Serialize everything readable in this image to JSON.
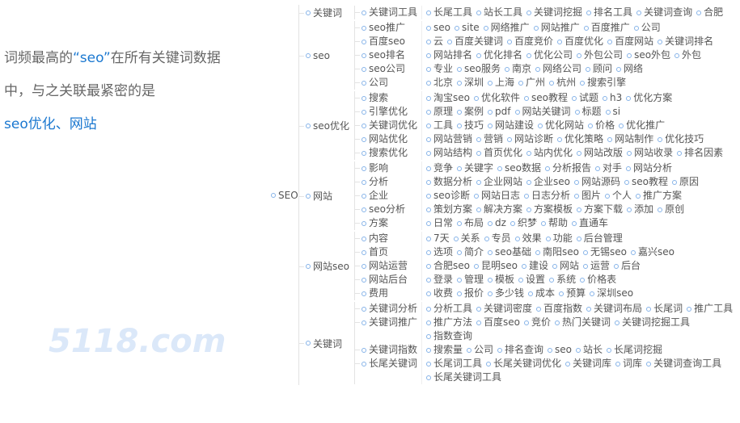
{
  "intro": {
    "line1_a": "词频最高的",
    "line1_keyword": "“seo”",
    "line1_b": "在所有关键词数据",
    "line2": "中，与之关联最紧密的是",
    "line3": "seo优化、网站"
  },
  "watermark": "5118.com",
  "colors": {
    "node_stroke": "#86b3e8",
    "link": "#e3e3e3",
    "label": "#555555",
    "highlight": "#1b78d0"
  },
  "tree": {
    "name": "SEO",
    "children": [
      {
        "name": "关键词",
        "children": [
          {
            "name": "关键词工具",
            "children": [
              "长尾工具",
              "站长工具",
              "关键词挖掘",
              "排名工具",
              "关键词查询",
              "合肥"
            ]
          }
        ]
      },
      {
        "name": "seo",
        "children": [
          {
            "name": "seo推广",
            "children": [
              "seo",
              "site",
              "网络推广",
              "网站推广",
              "百度推广",
              "公司"
            ]
          },
          {
            "name": "百度seo",
            "children": [
              "云",
              "百度关键词",
              "百度竞价",
              "百度优化",
              "百度网站",
              "关键词排名"
            ]
          },
          {
            "name": "seo排名",
            "children": [
              "网站排名",
              "优化排名",
              "优化公司",
              "外包公司",
              "seo外包",
              "外包"
            ]
          },
          {
            "name": "seo公司",
            "children": [
              "专业",
              "seo服务",
              "南京",
              "网络公司",
              "顾问",
              "网络"
            ]
          },
          {
            "name": "公司",
            "children": [
              "北京",
              "深圳",
              "上海",
              "广州",
              "杭州",
              "搜索引擎"
            ]
          }
        ]
      },
      {
        "name": "seo优化",
        "children": [
          {
            "name": "搜索",
            "children": [
              "淘宝seo",
              "优化软件",
              "seo教程",
              "试题",
              "h3",
              "优化方案"
            ]
          },
          {
            "name": "引擎优化",
            "children": [
              "原理",
              "案例",
              "pdf",
              "网站关键词",
              "标题",
              "si"
            ]
          },
          {
            "name": "关键词优化",
            "children": [
              "工具",
              "技巧",
              "网站建设",
              "优化网站",
              "价格",
              "优化推广"
            ]
          },
          {
            "name": "网站优化",
            "children": [
              "网站营销",
              "营销",
              "网站诊断",
              "优化策略",
              "网站制作",
              "优化技巧"
            ]
          },
          {
            "name": "搜索优化",
            "children": [
              "网站结构",
              "首页优化",
              "站内优化",
              "网站改版",
              "网站收录",
              "排名因素"
            ]
          }
        ]
      },
      {
        "name": "网站",
        "children": [
          {
            "name": "影响",
            "children": [
              "竞争",
              "关键字",
              "seo数据",
              "分析报告",
              "对手",
              "网站分析"
            ]
          },
          {
            "name": "分析",
            "children": [
              "数据分析",
              "企业网站",
              "企业seo",
              "网站源码",
              "seo教程",
              "原因"
            ]
          },
          {
            "name": "企业",
            "children": [
              "seo诊断",
              "网站日志",
              "日志分析",
              "图片",
              "个人",
              "推广方案"
            ]
          },
          {
            "name": "seo分析",
            "children": [
              "策划方案",
              "解决方案",
              "方案模板",
              "方案下载",
              "添加",
              "原创"
            ]
          },
          {
            "name": "方案",
            "children": [
              "日常",
              "布局",
              "dz",
              "织梦",
              "帮助",
              "直通车"
            ]
          }
        ]
      },
      {
        "name": "网站seo",
        "children": [
          {
            "name": "内容",
            "children": [
              "7天",
              "关系",
              "专员",
              "效果",
              "功能",
              "后台管理"
            ]
          },
          {
            "name": "首页",
            "children": [
              "选项",
              "简介",
              "seo基础",
              "南阳seo",
              "无锡seo",
              "嘉兴seo"
            ]
          },
          {
            "name": "网站运营",
            "children": [
              "合肥seo",
              "昆明seo",
              "建设",
              "网站",
              "运营",
              "后台"
            ]
          },
          {
            "name": "网站后台",
            "children": [
              "登录",
              "管理",
              "模板",
              "设置",
              "系统",
              "价格表"
            ]
          },
          {
            "name": "费用",
            "children": [
              "收费",
              "报价",
              "多少钱",
              "成本",
              "预算",
              "深圳seo"
            ]
          }
        ]
      },
      {
        "name": "关键词",
        "children": [
          {
            "name": "关键词分析",
            "children": [
              "分析工具",
              "关键词密度",
              "百度指数",
              "关键词布局",
              "长尾词",
              "推广工具"
            ]
          },
          {
            "name": "关键词推广",
            "children": [
              "推广方法",
              "百度seo",
              "竞价",
              "热门关键词",
              "关键词挖掘工具",
              "指数查询"
            ]
          },
          {
            "name": "关键词指数",
            "children": [
              "搜索量",
              "公司",
              "排名查询",
              "seo",
              "站长",
              "长尾词挖掘"
            ]
          },
          {
            "name": "长尾关键词",
            "children": [
              "长尾词工具",
              "长尾关键词优化",
              "关键词库",
              "词库",
              "关键词查询工具",
              "长尾关键词工具"
            ]
          }
        ]
      }
    ]
  }
}
